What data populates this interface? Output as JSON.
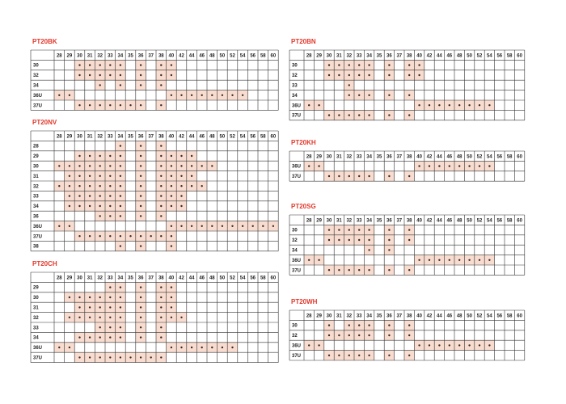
{
  "tables": [
    {
      "title": "PT20BK",
      "columns": [
        28,
        29,
        30,
        31,
        32,
        33,
        34,
        35,
        36,
        37,
        38,
        40,
        42,
        44,
        46,
        48,
        50,
        52,
        54,
        56,
        58,
        60
      ],
      "rows": [
        {
          "label": "30",
          "cells": [
            0,
            0,
            1,
            1,
            1,
            1,
            1,
            0,
            1,
            0,
            1,
            1,
            0,
            0,
            0,
            0,
            0,
            0,
            0,
            0,
            0,
            0
          ]
        },
        {
          "label": "32",
          "cells": [
            0,
            0,
            1,
            1,
            1,
            1,
            1,
            0,
            1,
            0,
            1,
            1,
            0,
            0,
            0,
            0,
            0,
            0,
            0,
            0,
            0,
            0
          ]
        },
        {
          "label": "34",
          "cells": [
            0,
            0,
            0,
            0,
            1,
            0,
            1,
            0,
            1,
            0,
            1,
            0,
            0,
            0,
            0,
            0,
            0,
            0,
            0,
            0,
            0,
            0
          ]
        },
        {
          "label": "36U",
          "cells": [
            1,
            1,
            0,
            0,
            0,
            0,
            0,
            0,
            0,
            0,
            0,
            1,
            1,
            1,
            1,
            1,
            1,
            1,
            1,
            0,
            0,
            0
          ]
        },
        {
          "label": "37U",
          "cells": [
            0,
            0,
            1,
            1,
            1,
            1,
            1,
            1,
            1,
            0,
            1,
            0,
            0,
            0,
            0,
            0,
            0,
            0,
            0,
            0,
            0,
            0
          ]
        }
      ]
    },
    {
      "title": "PT20NV",
      "columns": [
        28,
        29,
        30,
        31,
        32,
        33,
        34,
        35,
        36,
        37,
        38,
        40,
        42,
        44,
        46,
        48,
        50,
        52,
        54,
        56,
        58,
        60
      ],
      "rows": [
        {
          "label": "28",
          "cells": [
            0,
            0,
            0,
            0,
            0,
            0,
            1,
            0,
            1,
            0,
            1,
            0,
            0,
            0,
            0,
            0,
            0,
            0,
            0,
            0,
            0,
            0
          ]
        },
        {
          "label": "29",
          "cells": [
            0,
            0,
            1,
            1,
            1,
            1,
            1,
            0,
            1,
            0,
            1,
            1,
            1,
            1,
            0,
            0,
            0,
            0,
            0,
            0,
            0,
            0
          ]
        },
        {
          "label": "30",
          "cells": [
            1,
            1,
            1,
            1,
            1,
            1,
            1,
            0,
            1,
            0,
            1,
            1,
            1,
            1,
            1,
            1,
            0,
            0,
            0,
            0,
            0,
            0
          ]
        },
        {
          "label": "31",
          "cells": [
            0,
            1,
            1,
            1,
            1,
            1,
            1,
            0,
            1,
            0,
            1,
            1,
            1,
            1,
            0,
            0,
            0,
            0,
            0,
            0,
            0,
            0
          ]
        },
        {
          "label": "32",
          "cells": [
            1,
            1,
            1,
            1,
            1,
            1,
            1,
            0,
            1,
            0,
            1,
            1,
            1,
            1,
            1,
            0,
            0,
            0,
            0,
            0,
            0,
            0
          ]
        },
        {
          "label": "33",
          "cells": [
            0,
            1,
            1,
            1,
            1,
            1,
            1,
            0,
            1,
            0,
            1,
            1,
            1,
            0,
            0,
            0,
            0,
            0,
            0,
            0,
            0,
            0
          ]
        },
        {
          "label": "34",
          "cells": [
            0,
            1,
            1,
            1,
            1,
            1,
            1,
            0,
            1,
            0,
            1,
            1,
            1,
            0,
            0,
            0,
            0,
            0,
            0,
            0,
            0,
            0
          ]
        },
        {
          "label": "36",
          "cells": [
            0,
            0,
            0,
            0,
            1,
            1,
            1,
            0,
            1,
            0,
            1,
            0,
            0,
            0,
            0,
            0,
            0,
            0,
            0,
            0,
            0,
            0
          ]
        },
        {
          "label": "36U",
          "cells": [
            1,
            1,
            0,
            0,
            0,
            0,
            0,
            0,
            0,
            0,
            0,
            1,
            1,
            1,
            1,
            1,
            1,
            1,
            1,
            1,
            1,
            1
          ]
        },
        {
          "label": "37U",
          "cells": [
            0,
            0,
            1,
            1,
            1,
            1,
            1,
            1,
            1,
            1,
            1,
            1,
            0,
            0,
            0,
            0,
            0,
            0,
            0,
            0,
            0,
            0
          ]
        },
        {
          "label": "38",
          "cells": [
            0,
            0,
            0,
            0,
            0,
            0,
            1,
            0,
            1,
            0,
            0,
            1,
            0,
            0,
            0,
            0,
            0,
            0,
            0,
            0,
            0,
            0
          ]
        }
      ]
    },
    {
      "title": "PT20CH",
      "columns": [
        28,
        29,
        30,
        31,
        32,
        33,
        34,
        35,
        36,
        37,
        38,
        40,
        42,
        44,
        46,
        48,
        50,
        52,
        54,
        56,
        58,
        60
      ],
      "rows": [
        {
          "label": "29",
          "cells": [
            0,
            0,
            0,
            0,
            0,
            1,
            1,
            0,
            1,
            0,
            1,
            1,
            0,
            0,
            0,
            0,
            0,
            0,
            0,
            0,
            0,
            0
          ]
        },
        {
          "label": "30",
          "cells": [
            0,
            1,
            1,
            1,
            1,
            1,
            1,
            0,
            1,
            0,
            1,
            1,
            0,
            0,
            0,
            0,
            0,
            0,
            0,
            0,
            0,
            0
          ]
        },
        {
          "label": "31",
          "cells": [
            0,
            0,
            1,
            1,
            1,
            1,
            1,
            0,
            1,
            0,
            1,
            1,
            0,
            0,
            0,
            0,
            0,
            0,
            0,
            0,
            0,
            0
          ]
        },
        {
          "label": "32",
          "cells": [
            0,
            1,
            1,
            1,
            1,
            1,
            1,
            0,
            1,
            0,
            1,
            1,
            1,
            0,
            0,
            0,
            0,
            0,
            0,
            0,
            0,
            0
          ]
        },
        {
          "label": "33",
          "cells": [
            0,
            0,
            0,
            0,
            1,
            1,
            1,
            0,
            1,
            0,
            1,
            0,
            0,
            0,
            0,
            0,
            0,
            0,
            0,
            0,
            0,
            0
          ]
        },
        {
          "label": "34",
          "cells": [
            0,
            0,
            1,
            1,
            1,
            1,
            1,
            0,
            1,
            0,
            1,
            0,
            0,
            0,
            0,
            0,
            0,
            0,
            0,
            0,
            0,
            0
          ]
        },
        {
          "label": "36U",
          "cells": [
            1,
            1,
            0,
            0,
            0,
            0,
            0,
            0,
            0,
            0,
            0,
            1,
            1,
            1,
            1,
            1,
            1,
            1,
            0,
            0,
            0,
            0
          ]
        },
        {
          "label": "37U",
          "cells": [
            0,
            0,
            1,
            1,
            1,
            1,
            1,
            1,
            1,
            1,
            1,
            0,
            0,
            0,
            0,
            0,
            0,
            0,
            0,
            0,
            0,
            0
          ]
        }
      ]
    },
    {
      "title": "PT20BN",
      "columns": [
        28,
        29,
        30,
        31,
        32,
        33,
        34,
        35,
        36,
        37,
        38,
        40,
        42,
        44,
        46,
        48,
        50,
        52,
        54,
        56,
        58,
        60
      ],
      "rows": [
        {
          "label": "30",
          "cells": [
            0,
            0,
            1,
            1,
            1,
            1,
            1,
            0,
            1,
            0,
            1,
            1,
            0,
            0,
            0,
            0,
            0,
            0,
            0,
            0,
            0,
            0
          ]
        },
        {
          "label": "32",
          "cells": [
            0,
            0,
            1,
            1,
            1,
            1,
            1,
            0,
            1,
            0,
            1,
            1,
            0,
            0,
            0,
            0,
            0,
            0,
            0,
            0,
            0,
            0
          ]
        },
        {
          "label": "33",
          "cells": [
            0,
            0,
            0,
            0,
            1,
            0,
            0,
            0,
            0,
            0,
            0,
            0,
            0,
            0,
            0,
            0,
            0,
            0,
            0,
            0,
            0,
            0
          ]
        },
        {
          "label": "34",
          "cells": [
            0,
            0,
            0,
            0,
            1,
            1,
            1,
            0,
            1,
            0,
            1,
            0,
            0,
            0,
            0,
            0,
            0,
            0,
            0,
            0,
            0,
            0
          ]
        },
        {
          "label": "36U",
          "cells": [
            1,
            1,
            0,
            0,
            0,
            0,
            0,
            0,
            0,
            0,
            0,
            1,
            1,
            1,
            1,
            1,
            1,
            1,
            1,
            0,
            0,
            0
          ]
        },
        {
          "label": "37U",
          "cells": [
            0,
            0,
            1,
            1,
            1,
            1,
            1,
            0,
            1,
            0,
            1,
            0,
            0,
            0,
            0,
            0,
            0,
            0,
            0,
            0,
            0,
            0
          ]
        }
      ]
    },
    {
      "title": "PT20KH",
      "columns": [
        28,
        29,
        30,
        31,
        32,
        33,
        34,
        35,
        36,
        37,
        38,
        40,
        42,
        44,
        46,
        48,
        50,
        52,
        54,
        56,
        58,
        60
      ],
      "rows": [
        {
          "label": "36U",
          "cells": [
            1,
            1,
            0,
            0,
            0,
            0,
            0,
            0,
            0,
            0,
            0,
            1,
            1,
            1,
            1,
            1,
            1,
            1,
            1,
            0,
            0,
            0
          ]
        },
        {
          "label": "37U",
          "cells": [
            0,
            0,
            1,
            1,
            1,
            1,
            1,
            0,
            1,
            0,
            1,
            0,
            0,
            0,
            0,
            0,
            0,
            0,
            0,
            0,
            0,
            0
          ]
        }
      ]
    },
    {
      "title": "PT20SG",
      "columns": [
        28,
        29,
        30,
        31,
        32,
        33,
        34,
        35,
        36,
        37,
        38,
        40,
        42,
        44,
        46,
        48,
        50,
        52,
        54,
        56,
        58,
        60
      ],
      "rows": [
        {
          "label": "30",
          "cells": [
            0,
            0,
            1,
            1,
            1,
            1,
            1,
            0,
            1,
            0,
            1,
            0,
            0,
            0,
            0,
            0,
            0,
            0,
            0,
            0,
            0,
            0
          ]
        },
        {
          "label": "32",
          "cells": [
            0,
            0,
            1,
            1,
            1,
            1,
            1,
            0,
            1,
            0,
            1,
            0,
            0,
            0,
            0,
            0,
            0,
            0,
            0,
            0,
            0,
            0
          ]
        },
        {
          "label": "34",
          "cells": [
            0,
            0,
            0,
            0,
            0,
            0,
            1,
            0,
            1,
            0,
            0,
            0,
            0,
            0,
            0,
            0,
            0,
            0,
            0,
            0,
            0,
            0
          ]
        },
        {
          "label": "36U",
          "cells": [
            1,
            1,
            0,
            0,
            0,
            0,
            0,
            0,
            0,
            0,
            0,
            1,
            1,
            1,
            1,
            1,
            1,
            1,
            1,
            0,
            0,
            0
          ]
        },
        {
          "label": "37U",
          "cells": [
            0,
            0,
            1,
            1,
            1,
            1,
            1,
            0,
            1,
            0,
            1,
            0,
            0,
            0,
            0,
            0,
            0,
            0,
            0,
            0,
            0,
            0
          ]
        }
      ]
    },
    {
      "title": "PT20WH",
      "columns": [
        28,
        29,
        30,
        31,
        32,
        33,
        34,
        35,
        36,
        37,
        38,
        40,
        42,
        44,
        46,
        48,
        50,
        52,
        54,
        56,
        58,
        60
      ],
      "rows": [
        {
          "label": "30",
          "cells": [
            0,
            0,
            1,
            0,
            1,
            1,
            1,
            0,
            1,
            0,
            1,
            0,
            0,
            0,
            0,
            0,
            0,
            0,
            0,
            0,
            0,
            0
          ]
        },
        {
          "label": "32",
          "cells": [
            0,
            0,
            1,
            1,
            1,
            1,
            1,
            0,
            1,
            0,
            1,
            0,
            0,
            0,
            0,
            0,
            0,
            0,
            0,
            0,
            0,
            0
          ]
        },
        {
          "label": "36U",
          "cells": [
            1,
            1,
            0,
            0,
            0,
            0,
            0,
            0,
            0,
            0,
            0,
            1,
            1,
            1,
            1,
            1,
            1,
            1,
            1,
            0,
            0,
            0
          ]
        },
        {
          "label": "37U",
          "cells": [
            0,
            0,
            1,
            1,
            1,
            1,
            1,
            0,
            1,
            0,
            1,
            0,
            0,
            0,
            0,
            0,
            0,
            0,
            0,
            0,
            0,
            0
          ]
        }
      ]
    }
  ]
}
